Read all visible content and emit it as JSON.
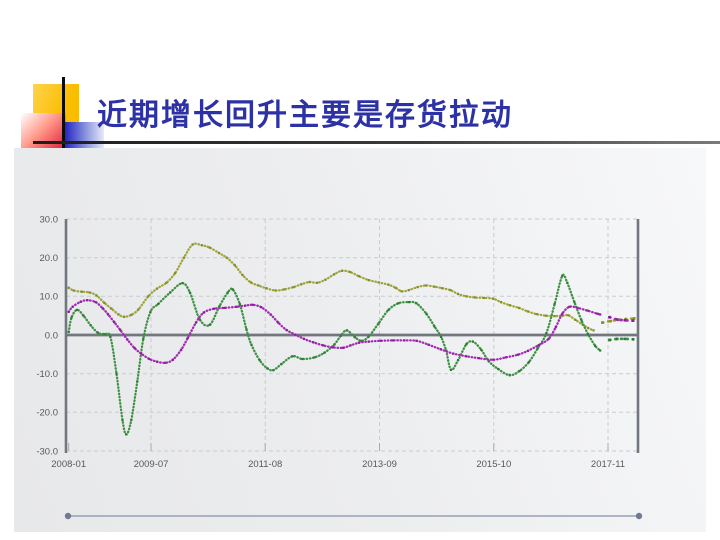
{
  "slide": {
    "title": "近期增长回升主要是存货拉动",
    "title_color": "#2d31a6"
  },
  "decoration": {
    "yellow_square": "#fbbd00",
    "red_square": "#e01030",
    "blue_square": "#2426c0",
    "rule_color": "#3a3a3a"
  },
  "chart_data": {
    "type": "line",
    "title": "",
    "legend": "none",
    "grid": true,
    "x_axis": {
      "labels": [
        "2008-01",
        "2009-07",
        "2011-08",
        "2013-09",
        "2015-10",
        "2017-11"
      ],
      "tick_years": [
        2008.0,
        2009.5,
        2011.583,
        2013.667,
        2015.75,
        2017.833
      ],
      "range": [
        2007.95,
        2018.38
      ]
    },
    "y_axis": {
      "tick_labels": [
        "30.0",
        "20.0",
        "10.0",
        "0.0",
        "-10.0",
        "-20.0",
        "-30.0"
      ],
      "tick_values": [
        30,
        20,
        10,
        0,
        -10,
        -20,
        -30
      ],
      "range": [
        -30,
        30
      ]
    },
    "series": [
      {
        "name": "olive-series",
        "color": "#9fa63c",
        "marker_color": "#878d2b",
        "points": [
          [
            2008.0,
            12.2
          ],
          [
            2008.09,
            11.5
          ],
          [
            2008.24,
            11.2
          ],
          [
            2008.38,
            11.0
          ],
          [
            2008.51,
            10.2
          ],
          [
            2008.65,
            8.3
          ],
          [
            2008.78,
            6.8
          ],
          [
            2008.91,
            5.3
          ],
          [
            2009.01,
            4.7
          ],
          [
            2009.14,
            5.2
          ],
          [
            2009.27,
            6.6
          ],
          [
            2009.45,
            10.0
          ],
          [
            2009.61,
            12.0
          ],
          [
            2009.78,
            13.5
          ],
          [
            2009.94,
            16.0
          ],
          [
            2010.1,
            20.0
          ],
          [
            2010.26,
            23.4
          ],
          [
            2010.43,
            23.2
          ],
          [
            2010.57,
            22.6
          ],
          [
            2010.74,
            21.2
          ],
          [
            2010.88,
            20.0
          ],
          [
            2011.03,
            18.0
          ],
          [
            2011.17,
            15.5
          ],
          [
            2011.32,
            13.6
          ],
          [
            2011.46,
            12.8
          ],
          [
            2011.6,
            12.1
          ],
          [
            2011.77,
            11.5
          ],
          [
            2011.93,
            11.8
          ],
          [
            2012.1,
            12.4
          ],
          [
            2012.24,
            13.1
          ],
          [
            2012.39,
            13.7
          ],
          [
            2012.53,
            13.5
          ],
          [
            2012.68,
            14.3
          ],
          [
            2012.84,
            15.7
          ],
          [
            2012.98,
            16.6
          ],
          [
            2013.13,
            16.3
          ],
          [
            2013.29,
            15.2
          ],
          [
            2013.47,
            14.2
          ],
          [
            2013.65,
            13.6
          ],
          [
            2013.83,
            13.0
          ],
          [
            2013.96,
            12.2
          ],
          [
            2014.07,
            11.3
          ],
          [
            2014.2,
            11.6
          ],
          [
            2014.36,
            12.4
          ],
          [
            2014.51,
            12.8
          ],
          [
            2014.67,
            12.5
          ],
          [
            2014.81,
            12.1
          ],
          [
            2014.96,
            11.6
          ],
          [
            2015.1,
            10.6
          ],
          [
            2015.25,
            10.0
          ],
          [
            2015.41,
            9.7
          ],
          [
            2015.57,
            9.6
          ],
          [
            2015.74,
            9.4
          ],
          [
            2015.88,
            8.5
          ],
          [
            2016.04,
            7.7
          ],
          [
            2016.21,
            7.0
          ],
          [
            2016.37,
            6.1
          ],
          [
            2016.53,
            5.4
          ],
          [
            2016.7,
            5.0
          ],
          [
            2016.86,
            4.9
          ],
          [
            2017.0,
            5.0
          ],
          [
            2017.11,
            5.1
          ],
          [
            2017.24,
            3.9
          ],
          [
            2017.37,
            2.7
          ],
          [
            2017.47,
            1.8
          ],
          [
            2017.57,
            1.2
          ]
        ],
        "forecast_points": [
          [
            2017.73,
            3.2
          ],
          [
            2017.88,
            3.6
          ],
          [
            2018.02,
            3.9
          ],
          [
            2018.16,
            4.1
          ],
          [
            2018.31,
            4.3
          ]
        ]
      },
      {
        "name": "green-series",
        "color": "#3f9143",
        "marker_color": "#2e7c35",
        "points": [
          [
            2008.0,
            0.8
          ],
          [
            2008.05,
            4.5
          ],
          [
            2008.15,
            6.5
          ],
          [
            2008.27,
            5.0
          ],
          [
            2008.4,
            2.5
          ],
          [
            2008.53,
            0.6
          ],
          [
            2008.65,
            0.2
          ],
          [
            2008.76,
            -0.5
          ],
          [
            2008.87,
            -10.0
          ],
          [
            2008.98,
            -22.0
          ],
          [
            2009.05,
            -25.7
          ],
          [
            2009.14,
            -22.0
          ],
          [
            2009.25,
            -12.0
          ],
          [
            2009.36,
            -1.0
          ],
          [
            2009.49,
            6.0
          ],
          [
            2009.63,
            8.0
          ],
          [
            2009.85,
            11.0
          ],
          [
            2010.07,
            13.4
          ],
          [
            2010.21,
            11.0
          ],
          [
            2010.39,
            4.0
          ],
          [
            2010.57,
            2.6
          ],
          [
            2010.75,
            7.5
          ],
          [
            2010.9,
            11.0
          ],
          [
            2010.99,
            11.8
          ],
          [
            2011.12,
            8.0
          ],
          [
            2011.24,
            1.5
          ],
          [
            2011.33,
            -2.5
          ],
          [
            2011.48,
            -6.5
          ],
          [
            2011.62,
            -8.6
          ],
          [
            2011.73,
            -9.1
          ],
          [
            2011.88,
            -7.5
          ],
          [
            2012.08,
            -5.5
          ],
          [
            2012.26,
            -6.2
          ],
          [
            2012.48,
            -5.8
          ],
          [
            2012.66,
            -4.6
          ],
          [
            2012.84,
            -2.5
          ],
          [
            2012.96,
            -0.2
          ],
          [
            2013.07,
            1.2
          ],
          [
            2013.22,
            -0.6
          ],
          [
            2013.34,
            -1.5
          ],
          [
            2013.47,
            -0.4
          ],
          [
            2013.65,
            3.0
          ],
          [
            2013.83,
            6.5
          ],
          [
            2014.01,
            8.2
          ],
          [
            2014.2,
            8.5
          ],
          [
            2014.34,
            8.2
          ],
          [
            2014.52,
            5.5
          ],
          [
            2014.67,
            2.2
          ],
          [
            2014.79,
            -0.5
          ],
          [
            2014.88,
            -4.0
          ],
          [
            2014.97,
            -9.0
          ],
          [
            2015.1,
            -6.5
          ],
          [
            2015.25,
            -2.4
          ],
          [
            2015.37,
            -1.7
          ],
          [
            2015.52,
            -3.8
          ],
          [
            2015.66,
            -6.8
          ],
          [
            2015.83,
            -8.8
          ],
          [
            2016.04,
            -10.4
          ],
          [
            2016.22,
            -9.3
          ],
          [
            2016.39,
            -7.0
          ],
          [
            2016.55,
            -3.5
          ],
          [
            2016.71,
            0.5
          ],
          [
            2016.86,
            8.0
          ],
          [
            2017.0,
            15.3
          ],
          [
            2017.09,
            13.5
          ],
          [
            2017.22,
            8.5
          ],
          [
            2017.35,
            3.8
          ],
          [
            2017.47,
            0.2
          ],
          [
            2017.6,
            -2.8
          ],
          [
            2017.69,
            -4.0
          ]
        ],
        "forecast_points": [
          [
            2017.86,
            -1.3
          ],
          [
            2018.0,
            -1.0
          ],
          [
            2018.14,
            -1.0
          ],
          [
            2018.29,
            -1.1
          ]
        ]
      },
      {
        "name": "purple-series",
        "color": "#a32cb2",
        "marker_color": "#8d1d9e",
        "points": [
          [
            2008.0,
            6.0
          ],
          [
            2008.07,
            7.3
          ],
          [
            2008.22,
            8.6
          ],
          [
            2008.34,
            9.0
          ],
          [
            2008.49,
            8.5
          ],
          [
            2008.62,
            6.9
          ],
          [
            2008.72,
            5.3
          ],
          [
            2008.83,
            3.3
          ],
          [
            2008.94,
            1.3
          ],
          [
            2009.07,
            -1.2
          ],
          [
            2009.2,
            -3.4
          ],
          [
            2009.32,
            -4.8
          ],
          [
            2009.47,
            -6.2
          ],
          [
            2009.61,
            -6.9
          ],
          [
            2009.76,
            -7.2
          ],
          [
            2009.9,
            -6.4
          ],
          [
            2010.05,
            -3.8
          ],
          [
            2010.17,
            -0.8
          ],
          [
            2010.32,
            3.2
          ],
          [
            2010.46,
            5.8
          ],
          [
            2010.65,
            6.8
          ],
          [
            2010.84,
            7.0
          ],
          [
            2011.06,
            7.3
          ],
          [
            2011.22,
            7.6
          ],
          [
            2011.35,
            7.8
          ],
          [
            2011.51,
            7.2
          ],
          [
            2011.68,
            5.3
          ],
          [
            2011.82,
            3.2
          ],
          [
            2011.97,
            1.3
          ],
          [
            2012.13,
            0.1
          ],
          [
            2012.29,
            -1.0
          ],
          [
            2012.46,
            -1.9
          ],
          [
            2012.64,
            -2.7
          ],
          [
            2012.82,
            -3.2
          ],
          [
            2013.0,
            -3.3
          ],
          [
            2013.14,
            -2.7
          ],
          [
            2013.29,
            -2.0
          ],
          [
            2013.47,
            -1.7
          ],
          [
            2013.69,
            -1.5
          ],
          [
            2013.91,
            -1.4
          ],
          [
            2014.12,
            -1.4
          ],
          [
            2014.34,
            -1.5
          ],
          [
            2014.56,
            -2.5
          ],
          [
            2014.78,
            -3.7
          ],
          [
            2015.01,
            -4.8
          ],
          [
            2015.25,
            -5.5
          ],
          [
            2015.48,
            -6.0
          ],
          [
            2015.74,
            -6.4
          ],
          [
            2015.97,
            -5.8
          ],
          [
            2016.19,
            -5.1
          ],
          [
            2016.37,
            -4.1
          ],
          [
            2016.57,
            -2.6
          ],
          [
            2016.75,
            -1.0
          ],
          [
            2016.88,
            2.0
          ],
          [
            2017.0,
            5.5
          ],
          [
            2017.13,
            7.3
          ],
          [
            2017.28,
            7.0
          ],
          [
            2017.46,
            6.3
          ],
          [
            2017.64,
            5.5
          ],
          [
            2017.69,
            5.3
          ]
        ],
        "forecast_points": [
          [
            2017.86,
            4.6
          ],
          [
            2018.0,
            4.0
          ],
          [
            2018.14,
            3.8
          ],
          [
            2018.29,
            3.7
          ]
        ]
      }
    ]
  },
  "scrollbar": {
    "track_color": "#97a0b3",
    "handle_color": "#707a90"
  }
}
